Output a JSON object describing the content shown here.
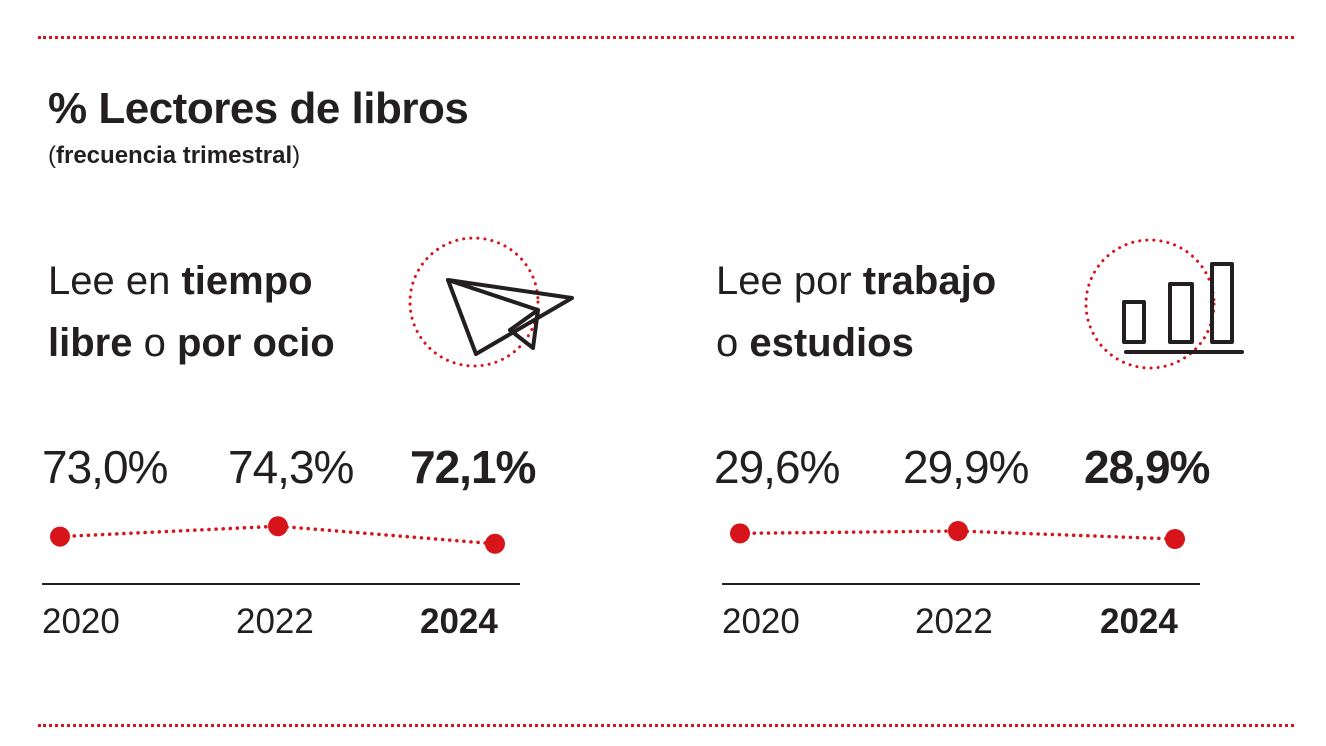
{
  "title": "% Lectores de libros",
  "subtitle": {
    "open": "(",
    "text": "frecuencia trimestral",
    "close": ")"
  },
  "colors": {
    "accent": "#d7141a",
    "text": "#231f20"
  },
  "panels": [
    {
      "heading": {
        "t1": "Lee en ",
        "t2": "tiempo",
        "t3": "libre",
        "t4": " o ",
        "t5": "por ocio"
      },
      "icon": "paper-plane-icon",
      "value_labels": [
        "73,0%",
        "74,3%",
        "72,1%"
      ],
      "year_labels": [
        "2020",
        "2022",
        "2024"
      ]
    },
    {
      "heading": {
        "t1": "Lee por ",
        "t2": "trabajo",
        "t3": "o ",
        "t4": "estudios"
      },
      "icon": "bar-chart-icon",
      "value_labels": [
        "29,6%",
        "29,9%",
        "28,9%"
      ],
      "year_labels": [
        "2020",
        "2022",
        "2024"
      ]
    }
  ],
  "chart_data": [
    {
      "type": "line",
      "title": "Lee en tiempo libre o por ocio",
      "x": [
        "2020",
        "2022",
        "2024"
      ],
      "series": [
        {
          "values": [
            73.0,
            74.3,
            72.1
          ]
        }
      ],
      "grid": false
    },
    {
      "type": "line",
      "title": "Lee por trabajo o estudios",
      "x": [
        "2020",
        "2022",
        "2024"
      ],
      "series": [
        {
          "values": [
            29.6,
            29.9,
            28.9
          ]
        }
      ],
      "grid": false
    }
  ]
}
